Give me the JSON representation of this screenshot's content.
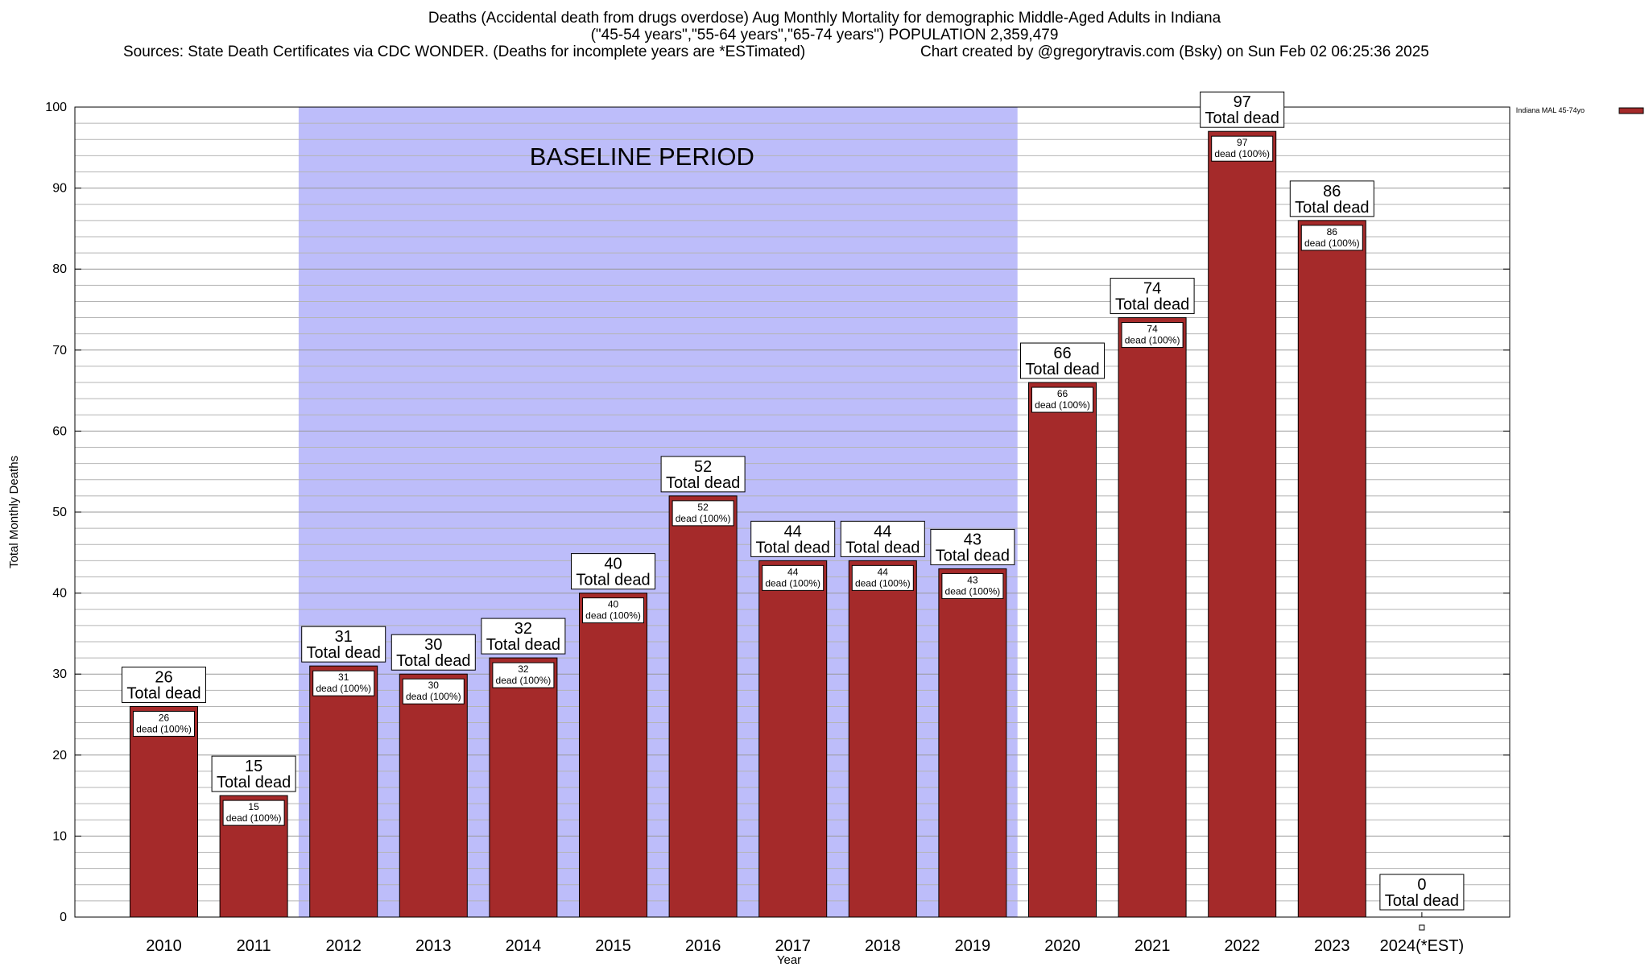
{
  "title": {
    "line1": "Deaths (Accidental death from drugs overdose) Aug Monthly Mortality for demographic Middle-Aged Adults in Indiana",
    "line2": "(\"45-54 years\",\"55-64 years\",\"65-74 years\") POPULATION 2,359,479",
    "sources": "Sources: State Death Certificates via CDC WONDER. (Deaths for incomplete years are *ESTimated)",
    "credit": "Chart created by @gregorytravis.com (Bsky) on Sun Feb 02 06:25:36 2025"
  },
  "colors": {
    "bar": "#a52a2a",
    "baseline_band": "#bdbdfa",
    "grid": "#b4b4b4"
  },
  "chart_data": {
    "type": "bar",
    "xlabel": "Year",
    "ylabel": "Total Monthly Deaths",
    "ylim": [
      0,
      100
    ],
    "y_ticks": [
      "0",
      "10",
      "20",
      "30",
      "40",
      "50",
      "60",
      "70",
      "80",
      "90",
      "100"
    ],
    "grid": true,
    "legend": {
      "position": "top-right",
      "label": "Indiana MAL 45-74yo"
    },
    "categories": [
      "2010",
      "2011",
      "2012",
      "2013",
      "2014",
      "2015",
      "2016",
      "2017",
      "2018",
      "2019",
      "2020",
      "2021",
      "2022",
      "2023",
      "2024(*EST)"
    ],
    "series": [
      {
        "name": "Indiana MAL 45-74yo",
        "values": [
          26,
          15,
          31,
          30,
          32,
          40,
          52,
          44,
          44,
          43,
          66,
          74,
          97,
          86,
          0
        ]
      }
    ],
    "top_labels": [
      {
        "value": "26",
        "text": "Total dead"
      },
      {
        "value": "15",
        "text": "Total dead"
      },
      {
        "value": "31",
        "text": "Total dead"
      },
      {
        "value": "30",
        "text": "Total dead"
      },
      {
        "value": "32",
        "text": "Total dead"
      },
      {
        "value": "40",
        "text": "Total dead"
      },
      {
        "value": "52",
        "text": "Total dead"
      },
      {
        "value": "44",
        "text": "Total dead"
      },
      {
        "value": "44",
        "text": "Total dead"
      },
      {
        "value": "43",
        "text": "Total dead"
      },
      {
        "value": "66",
        "text": "Total dead"
      },
      {
        "value": "74",
        "text": "Total dead"
      },
      {
        "value": "97",
        "text": "Total dead"
      },
      {
        "value": "86",
        "text": "Total dead"
      },
      {
        "value": "0",
        "text": "Total dead"
      }
    ],
    "inner_labels": [
      {
        "value": "26",
        "text": "dead (100%)"
      },
      {
        "value": "15",
        "text": "dead (100%)"
      },
      {
        "value": "31",
        "text": "dead (100%)"
      },
      {
        "value": "30",
        "text": "dead (100%)"
      },
      {
        "value": "32",
        "text": "dead (100%)"
      },
      {
        "value": "40",
        "text": "dead (100%)"
      },
      {
        "value": "52",
        "text": "dead (100%)"
      },
      {
        "value": "44",
        "text": "dead (100%)"
      },
      {
        "value": "44",
        "text": "dead (100%)"
      },
      {
        "value": "43",
        "text": "dead (100%)"
      },
      {
        "value": "66",
        "text": "dead (100%)"
      },
      {
        "value": "74",
        "text": "dead (100%)"
      },
      {
        "value": "97",
        "text": "dead (100%)"
      },
      {
        "value": "86",
        "text": "dead (100%)"
      }
    ],
    "baseline_period": {
      "label": "BASELINE PERIOD",
      "from": "2012",
      "to": "2019"
    }
  }
}
